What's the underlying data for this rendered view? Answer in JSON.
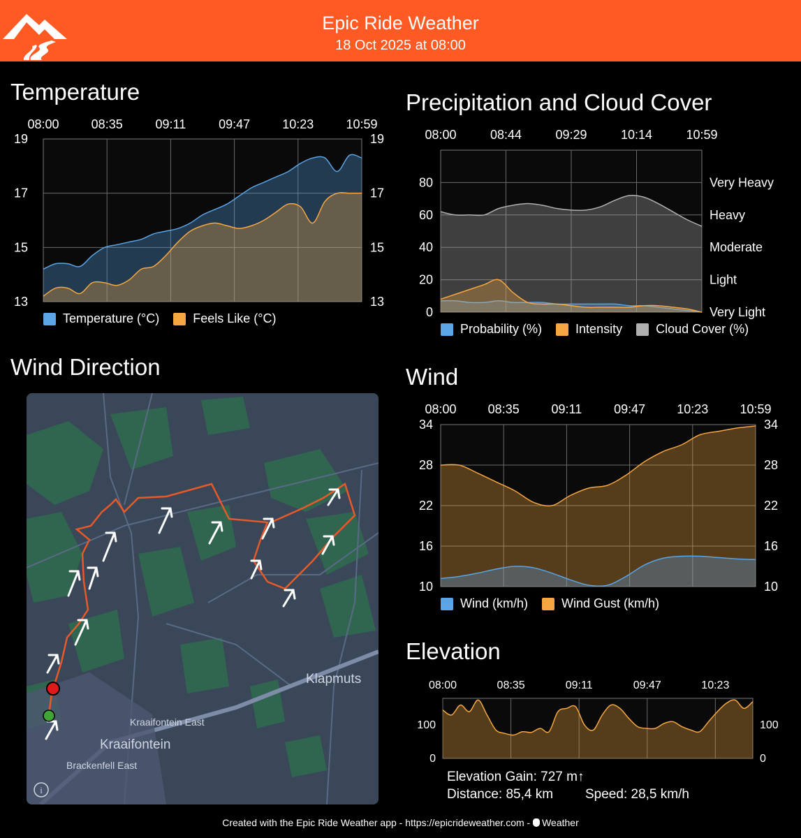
{
  "header": {
    "title": "Epic Ride Weather",
    "subtitle": "18 Oct 2025 at 08:00",
    "brand_color": "#FF5A24",
    "logo_icon": "mountain-road-icon"
  },
  "sections": {
    "temperature": "Temperature",
    "precipitation": "Precipitation and Cloud Cover",
    "wind_direction": "Wind Direction",
    "wind": "Wind",
    "elevation": "Elevation"
  },
  "temperature_legend": {
    "temperature": "Temperature (°C)",
    "feels_like": "Feels Like (°C)"
  },
  "precip_legend": {
    "probability": "Probability (%)",
    "intensity": "Intensity",
    "cloud": "Cloud Cover (%)"
  },
  "wind_legend": {
    "wind": "Wind (km/h)",
    "gust": "Wind Gust (km/h)"
  },
  "map": {
    "place_klapmuts": "Klapmuts",
    "place_kraaifontein_east": "Kraaifontein East",
    "place_kraaifontein": "Kraaifontein",
    "place_brackenfell_east": "Brackenfell East",
    "info_icon": "info-icon",
    "start_marker_color": "#3FA535",
    "end_marker_color": "#E0191B",
    "route_color": "#E8592A"
  },
  "stats": {
    "elevation_gain": "Elevation Gain: 727 m↑",
    "distance": "Distance: 85,4 km",
    "speed": "Speed: 28,5 km/h"
  },
  "footer": {
    "text": "Created with the Epic Ride Weather app - https://epicrideweather.com - ",
    "weather": "Weather",
    "apple_icon": "apple-icon"
  },
  "chart_data": [
    {
      "id": "temperature",
      "type": "area",
      "title": "Temperature",
      "x_ticks": [
        "08:00",
        "08:35",
        "09:11",
        "09:47",
        "10:23",
        "10:59"
      ],
      "ylim": [
        13,
        19
      ],
      "y_ticks": [
        "19",
        "17",
        "15",
        "13"
      ],
      "grid": true,
      "legend": "bottom-left",
      "series": [
        {
          "name": "Temperature (°C)",
          "color": "#5BA4E5",
          "values": [
            14.2,
            14.4,
            14.4,
            14.3,
            14.7,
            15.0,
            15.1,
            15.2,
            15.3,
            15.5,
            15.6,
            15.7,
            15.9,
            16.2,
            16.4,
            16.6,
            16.9,
            17.2,
            17.4,
            17.6,
            17.8,
            18.1,
            18.3,
            18.3,
            17.8,
            18.4,
            18.3
          ]
        },
        {
          "name": "Feels Like (°C)",
          "color": "#F5A742",
          "values": [
            13.2,
            13.5,
            13.5,
            13.3,
            13.7,
            13.7,
            13.6,
            13.8,
            14.2,
            14.3,
            14.7,
            15.2,
            15.6,
            15.8,
            15.9,
            15.8,
            15.7,
            15.8,
            16.0,
            16.3,
            16.6,
            16.5,
            15.9,
            16.7,
            17.0,
            17.0,
            17.0
          ]
        }
      ]
    },
    {
      "id": "precipitation",
      "type": "area",
      "title": "Precipitation and Cloud Cover",
      "x_ticks": [
        "08:00",
        "08:44",
        "09:29",
        "10:14",
        "10:59"
      ],
      "ylim": [
        0,
        100
      ],
      "y_ticks_left": [
        "80",
        "60",
        "40",
        "20",
        "0"
      ],
      "y_ticks_right": [
        "Very Heavy",
        "Heavy",
        "Moderate",
        "Light",
        "Very Light"
      ],
      "grid": true,
      "legend": "bottom-left",
      "series": [
        {
          "name": "Cloud Cover (%)",
          "color": "#B0B0B0",
          "values": [
            62,
            60,
            60,
            60,
            64,
            66,
            67,
            66,
            64,
            63,
            63,
            65,
            69,
            72,
            71,
            67,
            62,
            57,
            53
          ]
        },
        {
          "name": "Probability (%)",
          "color": "#5BA4E5",
          "values": [
            7,
            7,
            6,
            6,
            7,
            6,
            6,
            6,
            5,
            5,
            5,
            5,
            5,
            4,
            4,
            3,
            2,
            1,
            0
          ]
        },
        {
          "name": "Intensity",
          "color": "#F5A742",
          "values": [
            8,
            11,
            14,
            17,
            20,
            12,
            6,
            5,
            5,
            4,
            3,
            3,
            3,
            3,
            4,
            4,
            3,
            2,
            0
          ]
        }
      ]
    },
    {
      "id": "wind",
      "type": "area",
      "title": "Wind",
      "x_ticks": [
        "08:00",
        "08:35",
        "09:11",
        "09:47",
        "10:23",
        "10:59"
      ],
      "ylim": [
        10,
        34
      ],
      "y_ticks": [
        "34",
        "28",
        "22",
        "16",
        "10"
      ],
      "grid": true,
      "legend": "bottom-left",
      "series": [
        {
          "name": "Wind Gust (km/h)",
          "color": "#F5A742",
          "values": [
            28,
            28,
            26.8,
            25.5,
            24.2,
            22.5,
            22,
            23.5,
            24.6,
            25,
            26.5,
            28.5,
            30,
            31,
            32.5,
            33,
            33.5,
            33.8
          ]
        },
        {
          "name": "Wind (km/h)",
          "color": "#5BA4E5",
          "values": [
            11.2,
            11.5,
            12,
            12.6,
            13,
            12.8,
            12,
            11,
            10.2,
            10.2,
            11.5,
            13.2,
            14.2,
            14.5,
            14.5,
            14.3,
            14.1,
            14
          ]
        }
      ]
    },
    {
      "id": "elevation",
      "type": "area",
      "title": "Elevation",
      "x_ticks": [
        "08:00",
        "08:35",
        "09:11",
        "09:47",
        "10:23"
      ],
      "ylim": [
        0,
        180
      ],
      "y_ticks": [
        "100",
        "0"
      ],
      "grid": true,
      "series": [
        {
          "name": "Elevation",
          "color": "#F5A742",
          "values": [
            145,
            130,
            160,
            140,
            175,
            130,
            85,
            75,
            70,
            80,
            78,
            90,
            80,
            140,
            150,
            155,
            100,
            85,
            130,
            160,
            150,
            120,
            95,
            90,
            90,
            105,
            110,
            95,
            85,
            80,
            110,
            140,
            165,
            175,
            150,
            170
          ]
        }
      ]
    }
  ]
}
